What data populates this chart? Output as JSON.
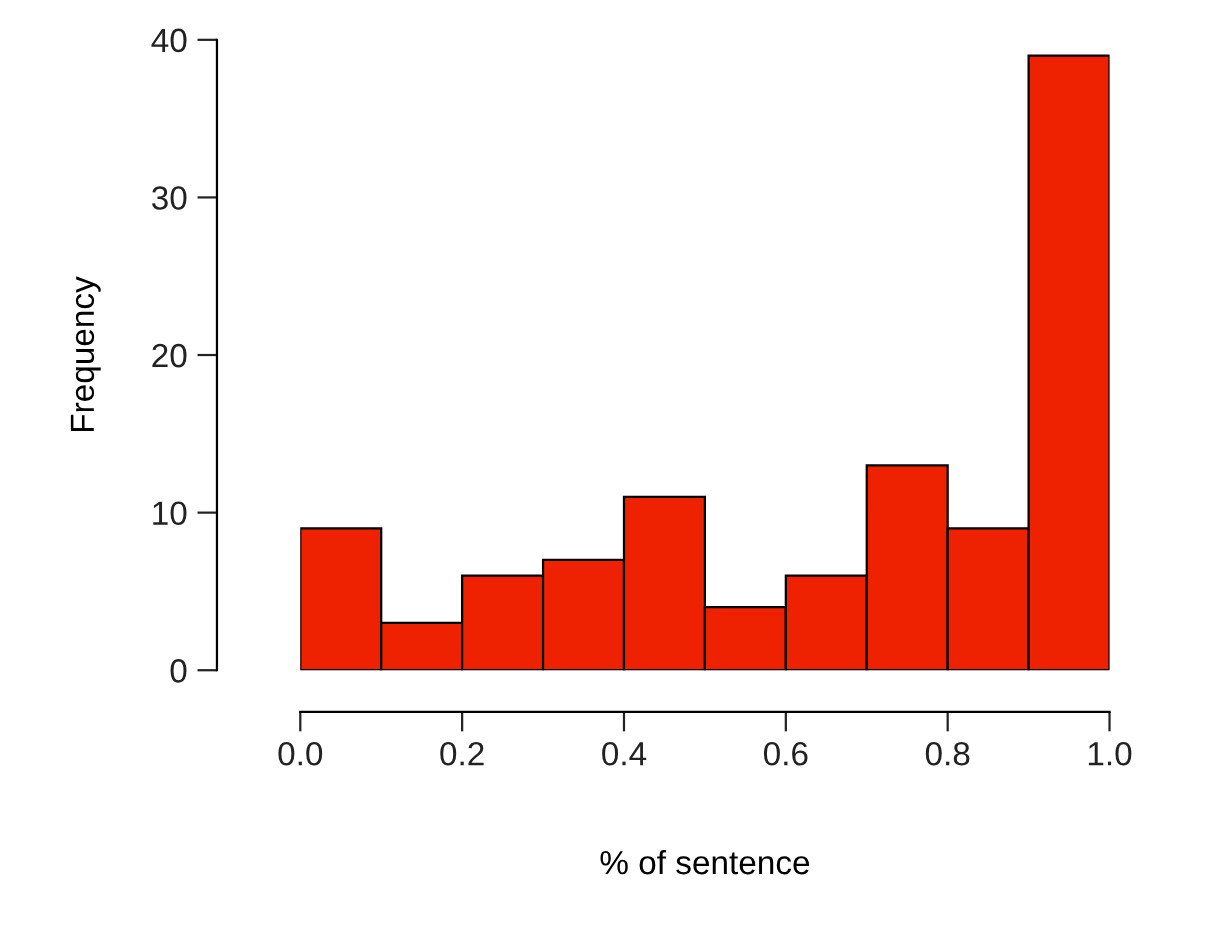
{
  "chart_data": {
    "type": "histogram",
    "xlabel": "% of sentence",
    "ylabel": "Frequency",
    "bins": [
      0,
      0.1,
      0.2,
      0.3,
      0.4,
      0.5,
      0.6,
      0.7,
      0.8,
      0.9,
      1.0
    ],
    "values": [
      9,
      3,
      6,
      7,
      11,
      4,
      6,
      13,
      9,
      39
    ],
    "color": "#ee2200",
    "xlim": [
      0,
      1
    ],
    "ylim": [
      0,
      40
    ],
    "xticks": [
      {
        "value": 0,
        "label": "0.0"
      },
      {
        "value": 0.2,
        "label": "0.2"
      },
      {
        "value": 0.4,
        "label": "0.4"
      },
      {
        "value": 0.6,
        "label": "0.6"
      },
      {
        "value": 0.8,
        "label": "0.8"
      },
      {
        "value": 1.0,
        "label": "1.0"
      }
    ],
    "yticks": [
      0,
      10,
      20,
      30,
      40
    ],
    "grid": false,
    "legend": false
  }
}
